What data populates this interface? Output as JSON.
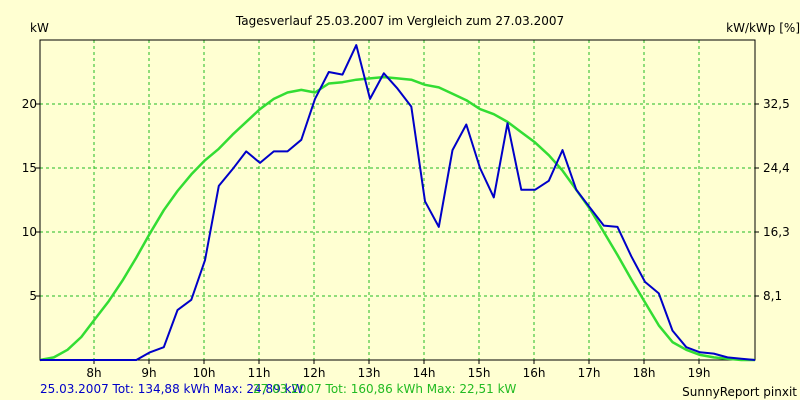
{
  "colors": {
    "background": "#ffffd2",
    "grid": "#22bb22",
    "series_blue": "#0000c8",
    "series_green": "#33dd33",
    "axis": "#000000"
  },
  "chart_data": {
    "type": "line",
    "title": "Tagesverlauf 25.03.2007 im Vergleich zum 27.03.2007",
    "ylabel_left": "kW",
    "ylabel_right": "kW/kWp [%]",
    "xlim": [
      7.0,
      20.0
    ],
    "ylim": [
      0,
      25
    ],
    "x_ticks": [
      8,
      9,
      10,
      11,
      12,
      13,
      14,
      15,
      16,
      17,
      18,
      19
    ],
    "x_tick_labels": [
      "8h",
      "9h",
      "10h",
      "11h",
      "12h",
      "13h",
      "14h",
      "15h",
      "16h",
      "17h",
      "18h",
      "19h"
    ],
    "y_ticks_left": [
      5,
      10,
      15,
      20
    ],
    "y_tick_labels_left": [
      "5",
      "10",
      "15",
      "20"
    ],
    "y_tick_labels_right": [
      "8,1",
      "16,3",
      "24,4",
      "32,5"
    ],
    "grid": true,
    "series": [
      {
        "name": "25.03.2007",
        "color": "#0000c8",
        "x": [
          7.0,
          8.75,
          9.0,
          9.25,
          9.5,
          9.75,
          10.0,
          10.25,
          10.5,
          10.75,
          11.0,
          11.25,
          11.5,
          11.75,
          12.0,
          12.25,
          12.5,
          12.75,
          13.0,
          13.25,
          13.5,
          13.75,
          14.0,
          14.25,
          14.5,
          14.75,
          15.0,
          15.25,
          15.5,
          15.75,
          16.0,
          16.25,
          16.5,
          16.75,
          17.0,
          17.25,
          17.5,
          17.75,
          18.0,
          18.25,
          18.5,
          18.75,
          19.0,
          19.25,
          19.5,
          19.75,
          20.0
        ],
        "y": [
          0,
          0,
          0.6,
          1.0,
          3.9,
          4.7,
          7.8,
          13.6,
          14.9,
          16.3,
          15.4,
          16.3,
          16.3,
          17.2,
          20.4,
          22.5,
          22.3,
          24.6,
          20.4,
          22.4,
          21.2,
          19.8,
          12.4,
          10.4,
          16.4,
          18.4,
          15.0,
          12.7,
          18.5,
          13.3,
          13.3,
          14.0,
          16.4,
          13.3,
          11.9,
          10.5,
          10.4,
          8.1,
          6.1,
          5.2,
          2.3,
          1.0,
          0.6,
          0.5,
          0.2,
          0.1,
          0
        ],
        "total": "25.03.2007 Tot: 134,88 kWh Max: 24,89 kW"
      },
      {
        "name": "27.03.2007",
        "color": "#33dd33",
        "x": [
          7.0,
          7.25,
          7.5,
          7.75,
          8.0,
          8.25,
          8.5,
          8.75,
          9.0,
          9.25,
          9.5,
          9.75,
          10.0,
          10.25,
          10.5,
          10.75,
          11.0,
          11.25,
          11.5,
          11.75,
          12.0,
          12.25,
          12.5,
          12.75,
          13.0,
          13.25,
          13.5,
          13.75,
          14.0,
          14.25,
          14.5,
          14.75,
          15.0,
          15.25,
          15.5,
          15.75,
          16.0,
          16.25,
          16.5,
          16.75,
          17.0,
          17.25,
          17.5,
          17.75,
          18.0,
          18.25,
          18.5,
          18.75,
          19.0,
          19.25,
          19.5,
          19.75,
          20.0
        ],
        "y": [
          0,
          0.2,
          0.8,
          1.8,
          3.2,
          4.6,
          6.2,
          8.0,
          9.9,
          11.7,
          13.2,
          14.5,
          15.6,
          16.5,
          17.6,
          18.6,
          19.6,
          20.4,
          20.9,
          21.1,
          20.9,
          21.6,
          21.7,
          21.9,
          22.0,
          22.1,
          22.0,
          21.9,
          21.5,
          21.3,
          20.8,
          20.3,
          19.6,
          19.2,
          18.6,
          17.8,
          17.0,
          16.0,
          14.8,
          13.3,
          11.8,
          10.0,
          8.2,
          6.3,
          4.5,
          2.7,
          1.4,
          0.8,
          0.4,
          0.2,
          0.1,
          0,
          0
        ],
        "total": "27.03.2007 Tot: 160,86 kWh Max: 22,51 kW"
      }
    ],
    "footer_right": "SunnyReport pinxit"
  }
}
